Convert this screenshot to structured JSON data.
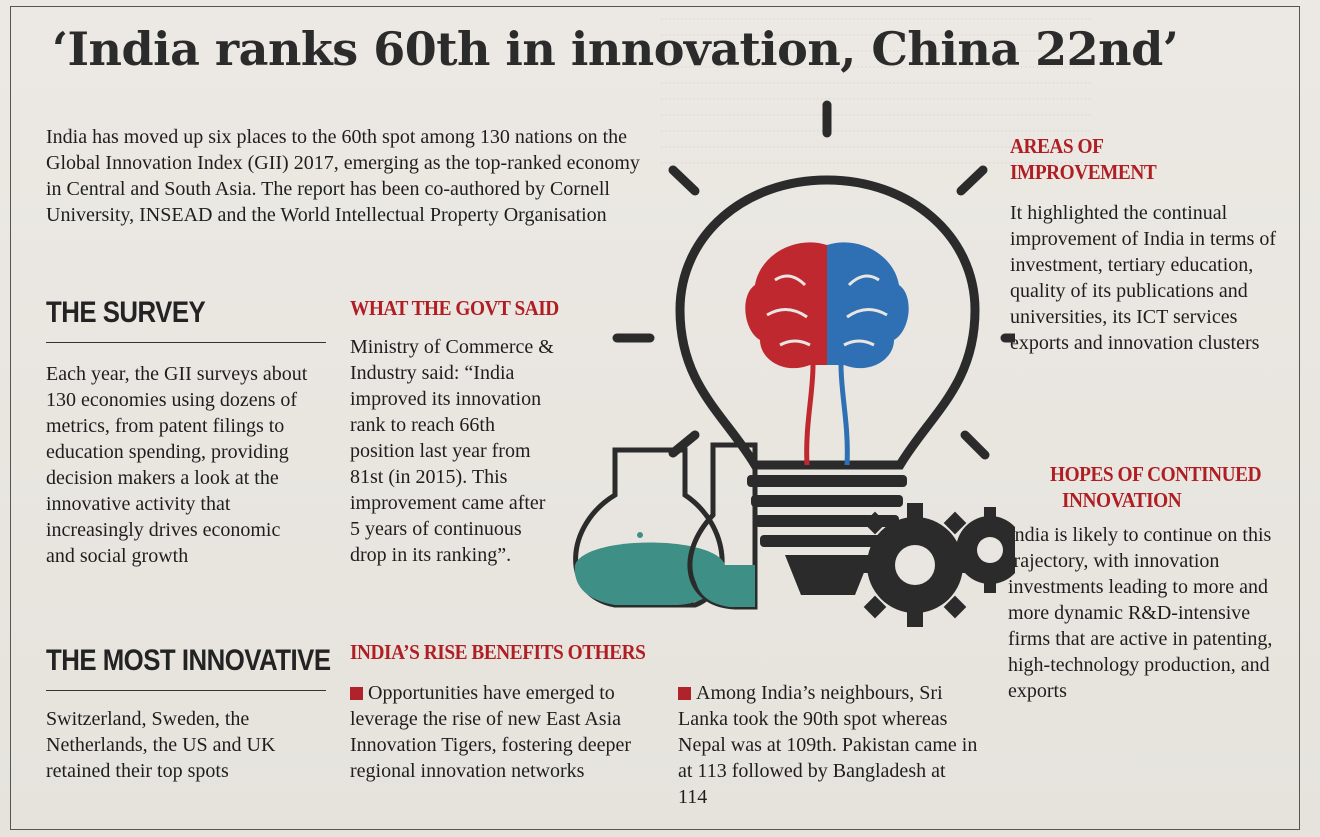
{
  "headline": "‘India ranks 60th in innovation, China 22nd’",
  "intro": "India has moved up six places to the 60th spot among 130 nations on the Global Innovation Index (GII) 2017, emerging as the top-ranked economy in Central and South Asia. The report has been co-authored by Cornell University, INSEAD and the World Intellectual Property Organisation",
  "survey": {
    "heading": "THE SURVEY",
    "text": "Each year, the GII surveys about 130 economies using dozens of metrics, from patent filings to education spending, providing decision makers a look at the innovative activity that increasingly drives economic and social growth"
  },
  "most_innovative": {
    "heading": "THE MOST INNOVATIVE",
    "text": "Switzerland, Sweden, the Netherlands, the US and UK retained their top spots"
  },
  "govt": {
    "heading": "WHAT THE GOVT SAID",
    "text": "Ministry of Commerce & Industry said: “India improved its innovation rank to reach 66th position last year from 81st (in 2015). This improvement came after 5 years of continuous drop in its ranking”."
  },
  "rise": {
    "heading": "INDIA’S RISE BENEFITS OTHERS",
    "left": "Opportunities have emerged to leverage the rise of new East Asia Innovation Tigers, fostering deeper regional innovation networks",
    "right": "Among India’s neighbours, Sri Lanka took the 90th spot whereas Nepal was at 109th. Pakistan came in at 113 followed by Bangladesh at 114"
  },
  "improvement": {
    "heading_line1": "AREAS OF",
    "heading_line2": "IMPROVEMENT",
    "text": "It highlighted the continual improvement of India in terms of investment, tertiary education, quality of its publications and universities, its ICT services exports and innovation clusters"
  },
  "hopes": {
    "heading_line1": "HOPES OF CONTINUED",
    "heading_line2": "INNOVATION",
    "text": "India is likely to continue on this trajectory, with innovation investments leading to more and more dynamic R&D-intensive firms that are active in patenting, high-technology production, and exports"
  },
  "colors": {
    "red_heading": "#b01e23",
    "brain_left": "#c0282f",
    "brain_right": "#2f6fb4",
    "bulb_outline": "#2b2b2b",
    "flask_liquid": "#3e8f86"
  },
  "icons": [
    "lightbulb-icon",
    "brain-icon",
    "gear-icon",
    "flask-icon"
  ]
}
